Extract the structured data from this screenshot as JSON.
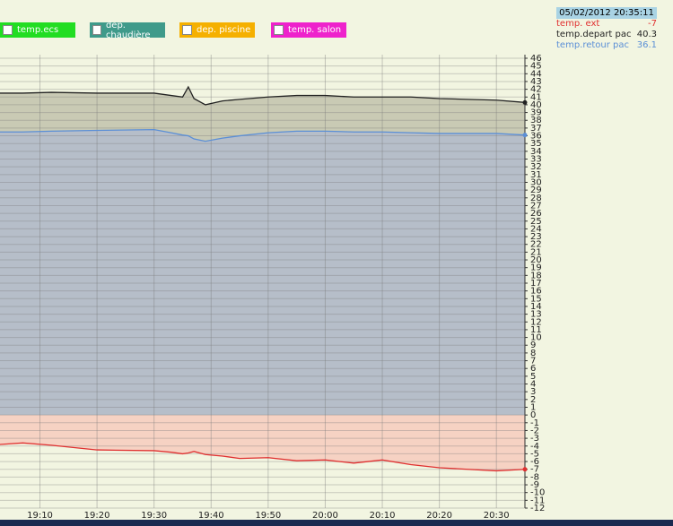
{
  "chart_data": {
    "type": "area",
    "x": [
      "19:03",
      "19:07",
      "19:12",
      "19:20",
      "19:30",
      "19:33",
      "19:35",
      "19:36",
      "19:37",
      "19:39",
      "19:42",
      "19:45",
      "19:50",
      "19:55",
      "20:00",
      "20:05",
      "20:10",
      "20:15",
      "20:20",
      "20:25",
      "20:30",
      "20:35"
    ],
    "series": [
      {
        "name": "temp.depart pac",
        "color": "#222222",
        "fill": "#c9cab4",
        "current": 40.3,
        "values": [
          41.5,
          41.5,
          41.6,
          41.5,
          41.5,
          41.2,
          41,
          42.3,
          40.8,
          40,
          40.5,
          40.7,
          41,
          41.2,
          41.2,
          41,
          41,
          41,
          40.8,
          40.7,
          40.6,
          40.3
        ]
      },
      {
        "name": "temp.retour pac",
        "color": "#5b8fd6",
        "fill": "#b6bec9",
        "current": 36.1,
        "values": [
          36.5,
          36.5,
          36.6,
          36.7,
          36.8,
          36.4,
          36.1,
          36,
          35.6,
          35.3,
          35.7,
          36,
          36.4,
          36.6,
          36.6,
          36.5,
          36.5,
          36.4,
          36.3,
          36.3,
          36.3,
          36.1
        ]
      },
      {
        "name": "temp. ext",
        "color": "#e03030",
        "fill": "#f6d2c3",
        "current": -7,
        "values": [
          -3.8,
          -3.6,
          -3.9,
          -4.5,
          -4.6,
          -4.8,
          -5,
          -4.9,
          -4.7,
          -5.1,
          -5.3,
          -5.6,
          -5.5,
          -5.9,
          -5.8,
          -6.2,
          -5.8,
          -6.4,
          -6.8,
          -7,
          -7.2,
          -7
        ]
      }
    ],
    "xlim": [
      "19:03",
      "20:35"
    ],
    "xticks": [
      "19:10",
      "19:20",
      "19:30",
      "19:40",
      "19:50",
      "20:00",
      "20:10",
      "20:20",
      "20:30"
    ],
    "ylim": [
      -12,
      46
    ],
    "yticks": [
      -12,
      -11,
      -10,
      -9,
      -8,
      -7,
      -6,
      -5,
      -4,
      -3,
      -2,
      -1,
      0,
      1,
      2,
      3,
      4,
      5,
      6,
      7,
      8,
      9,
      10,
      11,
      12,
      13,
      14,
      15,
      16,
      17,
      18,
      19,
      20,
      21,
      22,
      23,
      24,
      25,
      26,
      27,
      28,
      29,
      30,
      31,
      32,
      33,
      34,
      35,
      36,
      37,
      38,
      39,
      40,
      41,
      42,
      43,
      44,
      45,
      46
    ],
    "grid": true,
    "timestamp": "05/02/2012 20:35:11"
  },
  "toggles": [
    {
      "label": "temp.ecs",
      "color": "#22dd22"
    },
    {
      "label": "dep. chaudière",
      "color": "#3f9a8a"
    },
    {
      "label": "dep. piscine",
      "color": "#f5b000"
    },
    {
      "label": "temp. salon",
      "color": "#ee22cc"
    }
  ]
}
